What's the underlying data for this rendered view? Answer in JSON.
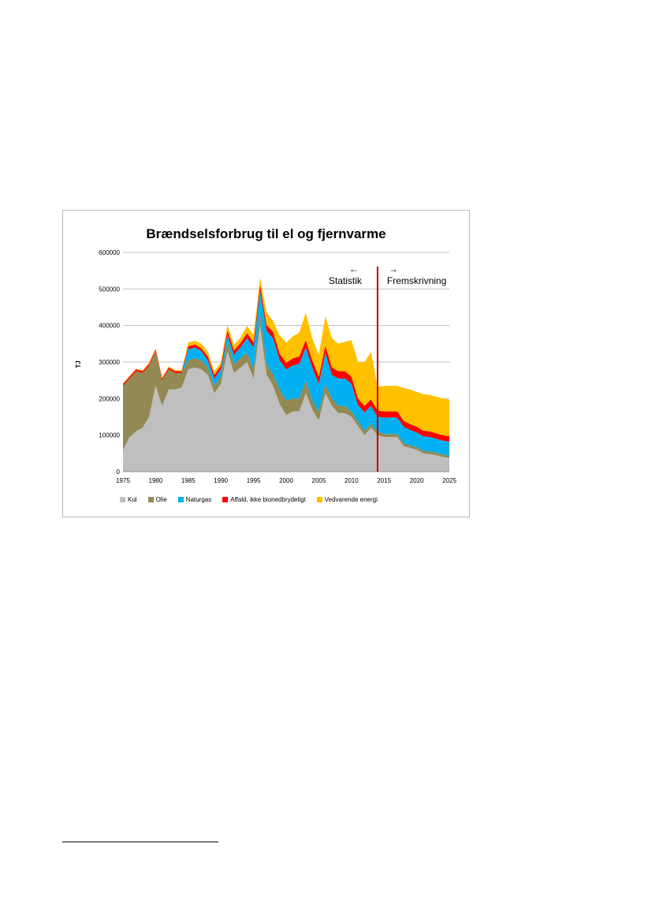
{
  "chart_data": {
    "type": "area",
    "stacked": true,
    "title": "Brændselsforbrug til el og fjernvarme",
    "ylabel": "TJ",
    "xlabel": "",
    "xlim": [
      1975,
      2025
    ],
    "ylim": [
      0,
      600000
    ],
    "x_ticks": [
      "1975",
      "1980",
      "1985",
      "1990",
      "1995",
      "2000",
      "2005",
      "2010",
      "2015",
      "2020",
      "2025"
    ],
    "y_ticks": [
      "0",
      "100000",
      "200000",
      "300000",
      "400000",
      "500000",
      "600000"
    ],
    "grid": "horizontal",
    "legend": "bottom",
    "annotations": {
      "divider_year": 2014,
      "left_arrow": "←",
      "left_label": "Statistik",
      "right_arrow": "→",
      "right_label": "Fremskrivning",
      "divider_color": "#c00000"
    },
    "x": [
      1975,
      1976,
      1977,
      1978,
      1979,
      1980,
      1981,
      1982,
      1983,
      1984,
      1985,
      1986,
      1987,
      1988,
      1989,
      1990,
      1991,
      1992,
      1993,
      1994,
      1995,
      1996,
      1997,
      1998,
      1999,
      2000,
      2001,
      2002,
      2003,
      2004,
      2005,
      2006,
      2007,
      2008,
      2009,
      2010,
      2011,
      2012,
      2013,
      2014,
      2015,
      2016,
      2017,
      2018,
      2019,
      2020,
      2021,
      2022,
      2023,
      2024,
      2025
    ],
    "series": [
      {
        "name": "Kul",
        "color": "#bfbfbf",
        "values": [
          60000,
          95000,
          110000,
          120000,
          150000,
          235000,
          180000,
          225000,
          225000,
          230000,
          280000,
          285000,
          280000,
          265000,
          215000,
          240000,
          330000,
          270000,
          285000,
          300000,
          255000,
          400000,
          265000,
          235000,
          185000,
          155000,
          165000,
          165000,
          215000,
          170000,
          140000,
          215000,
          180000,
          160000,
          160000,
          150000,
          125000,
          100000,
          120000,
          100000,
          95000,
          95000,
          95000,
          70000,
          65000,
          60000,
          50000,
          48000,
          45000,
          40000,
          38000
        ]
      },
      {
        "name": "Olie",
        "color": "#938953",
        "values": [
          175000,
          160000,
          165000,
          150000,
          140000,
          95000,
          70000,
          55000,
          45000,
          40000,
          25000,
          25000,
          25000,
          20000,
          20000,
          20000,
          25000,
          25000,
          25000,
          25000,
          25000,
          30000,
          30000,
          30000,
          40000,
          40000,
          35000,
          35000,
          35000,
          25000,
          25000,
          25000,
          20000,
          20000,
          20000,
          15000,
          12000,
          12000,
          10000,
          10000,
          8000,
          8000,
          8000,
          8000,
          7000,
          7000,
          7000,
          7000,
          7000,
          7000,
          6000
        ]
      },
      {
        "name": "Naturgas",
        "color": "#00b0f0",
        "values": [
          0,
          0,
          0,
          0,
          0,
          0,
          0,
          0,
          0,
          0,
          30000,
          30000,
          25000,
          20000,
          20000,
          20000,
          20000,
          25000,
          30000,
          40000,
          60000,
          65000,
          90000,
          100000,
          80000,
          85000,
          90000,
          95000,
          90000,
          90000,
          75000,
          85000,
          65000,
          75000,
          75000,
          75000,
          45000,
          50000,
          50000,
          40000,
          45000,
          45000,
          45000,
          45000,
          42000,
          40000,
          40000,
          40000,
          38000,
          38000,
          38000
        ]
      },
      {
        "name": "Affald, ikke bionedbrydeligt",
        "color": "#ff0000",
        "values": [
          5000,
          5000,
          5000,
          5000,
          5000,
          5000,
          5000,
          5000,
          5000,
          5000,
          8000,
          8000,
          8000,
          10000,
          10000,
          10000,
          12000,
          12000,
          12000,
          14000,
          14000,
          16000,
          16000,
          18000,
          18000,
          18000,
          20000,
          20000,
          20000,
          20000,
          20000,
          20000,
          20000,
          20000,
          20000,
          20000,
          18000,
          18000,
          18000,
          17000,
          17000,
          17000,
          17000,
          16000,
          16000,
          16000,
          15000,
          15000,
          15000,
          15000,
          15000
        ]
      },
      {
        "name": "Vedvarende energi",
        "color": "#ffc000",
        "values": [
          2000,
          2000,
          2000,
          2000,
          3000,
          3000,
          3000,
          3000,
          3000,
          3000,
          10000,
          10000,
          12000,
          13000,
          10000,
          10000,
          15000,
          15000,
          15000,
          20000,
          20000,
          20000,
          35000,
          30000,
          50000,
          55000,
          60000,
          65000,
          75000,
          60000,
          60000,
          80000,
          80000,
          75000,
          80000,
          100000,
          100000,
          120000,
          130000,
          65000,
          70000,
          70000,
          70000,
          90000,
          95000,
          95000,
          100000,
          100000,
          100000,
          100000,
          100000
        ]
      }
    ]
  }
}
